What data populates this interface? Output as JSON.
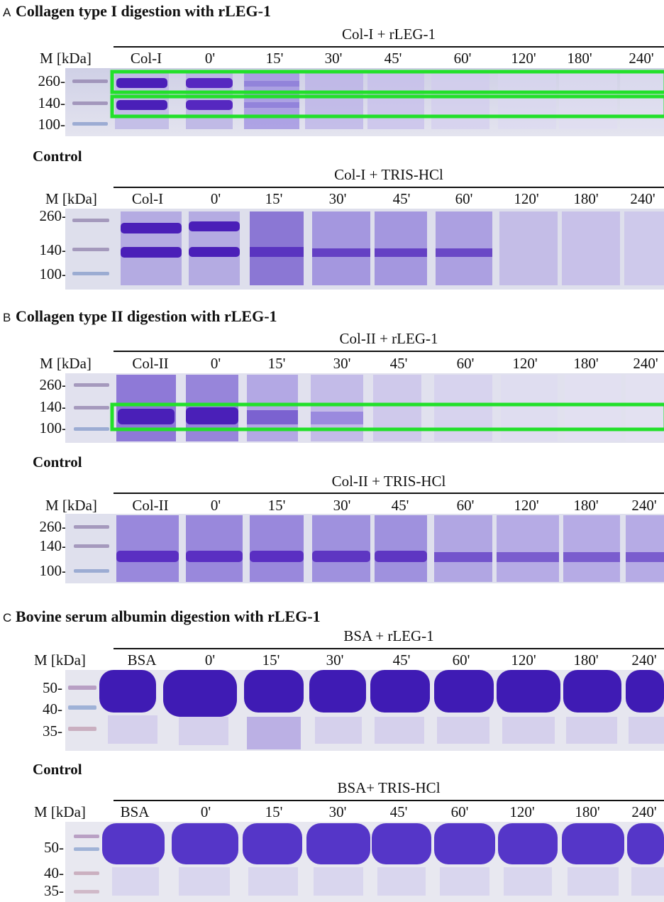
{
  "panels": [
    {
      "letter": "A",
      "title": "Collagen type I digestion with rLEG-1",
      "gels": [
        {
          "condition": "Col-I + rLEG-1",
          "marker_header": "M [kDa]",
          "lanes": [
            "Col-I",
            "0'",
            "15'",
            "30'",
            "45'",
            "60'",
            "120'",
            "180'",
            "240'"
          ],
          "ladder": [
            "260-",
            "140-",
            "100-"
          ],
          "highlight_color": "#22e02a"
        },
        {
          "section_label": "Control",
          "condition": "Col-I + TRIS-HCl",
          "marker_header": "M [kDa]",
          "lanes": [
            "Col-I",
            "0'",
            "15'",
            "30'",
            "45'",
            "60'",
            "120'",
            "180'",
            "240'"
          ],
          "ladder": [
            "260-",
            "140-",
            "100-"
          ]
        }
      ]
    },
    {
      "letter": "B",
      "title": "Collagen type II digestion with rLEG-1",
      "gels": [
        {
          "condition": "Col-II + rLEG-1",
          "marker_header": "M [kDa]",
          "lanes": [
            "Col-II",
            "0'",
            "15'",
            "30'",
            "45'",
            "60'",
            "120'",
            "180'",
            "240'"
          ],
          "ladder": [
            "260-",
            "140-",
            "100-"
          ],
          "highlight_color": "#22e02a"
        },
        {
          "section_label": "Control",
          "condition": "Col-II + TRIS-HCl",
          "marker_header": "M [kDa]",
          "lanes": [
            "Col-II",
            "0'",
            "15'",
            "30'",
            "45'",
            "60'",
            "120'",
            "180'",
            "240'"
          ],
          "ladder": [
            "260-",
            "140-",
            "100-"
          ]
        }
      ]
    },
    {
      "letter": "C",
      "title": "Bovine serum albumin digestion with rLEG-1",
      "gels": [
        {
          "condition": "BSA + rLEG-1",
          "marker_header": "M [kDa]",
          "lanes": [
            "BSA",
            "0'",
            "15'",
            "30'",
            "45'",
            "60'",
            "120'",
            "180'",
            "240'"
          ],
          "ladder": [
            "50-",
            "40-",
            "35-"
          ]
        },
        {
          "section_label": "Control",
          "condition": "BSA+ TRIS-HCl",
          "marker_header": "M [kDa]",
          "lanes": [
            "BSA",
            "0'",
            "15'",
            "30'",
            "45'",
            "60'",
            "120'",
            "180'",
            "240'"
          ],
          "ladder": [
            "50-",
            "40-",
            "35-"
          ]
        }
      ]
    }
  ],
  "colors": {
    "gel_background": "#dcdcea",
    "stain_strong": "#4a1fb8",
    "stain_light": "#b9b0e6",
    "highlight": "#22e02a"
  }
}
